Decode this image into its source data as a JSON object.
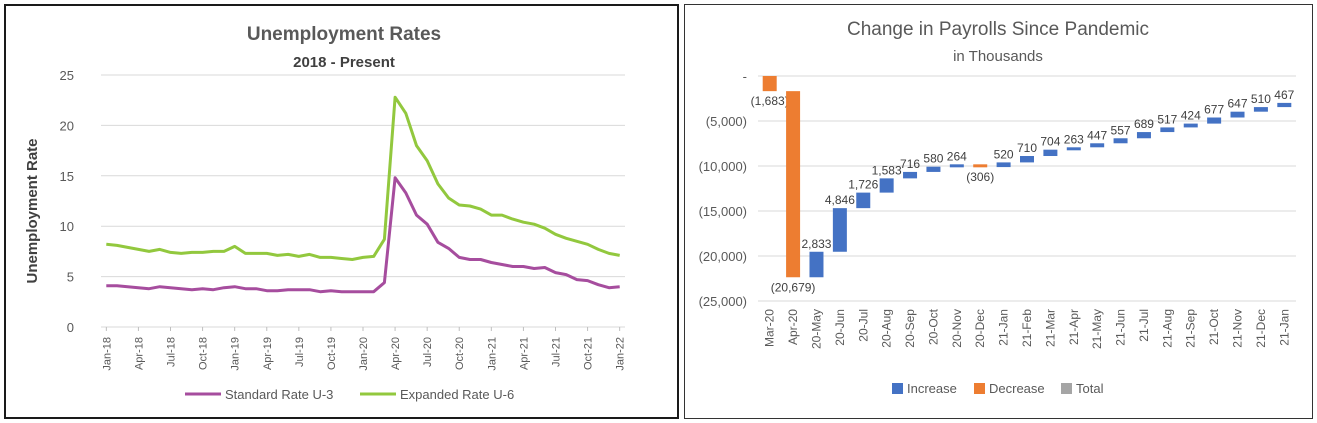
{
  "chart_data": [
    {
      "type": "line",
      "title": "Unemployment Rates",
      "subtitle": "2018 - Present",
      "xlabel": "",
      "ylabel": "Unemployment Rate",
      "ylim": [
        0,
        25
      ],
      "yticks": [
        "0",
        "5",
        "10",
        "15",
        "20",
        "25"
      ],
      "xtick_labels": [
        "Jan-18",
        "Apr-18",
        "Jul-18",
        "Oct-18",
        "Jan-19",
        "Apr-19",
        "Jul-19",
        "Oct-19",
        "Jan-20",
        "Apr-20",
        "Jul-20",
        "Oct-20",
        "Jan-21",
        "Apr-21",
        "Jul-21",
        "Oct-21",
        "Jan-22"
      ],
      "grid": true,
      "legend": "bottom",
      "series": [
        {
          "name": "Standard Rate U-3",
          "color": "#a64d9e",
          "values": [
            4.1,
            4.1,
            4.0,
            3.9,
            3.8,
            4.0,
            3.9,
            3.8,
            3.7,
            3.8,
            3.7,
            3.9,
            4.0,
            3.8,
            3.8,
            3.6,
            3.6,
            3.7,
            3.7,
            3.7,
            3.5,
            3.6,
            3.5,
            3.5,
            3.5,
            3.5,
            4.4,
            14.8,
            13.3,
            11.1,
            10.2,
            8.4,
            7.8,
            6.9,
            6.7,
            6.7,
            6.4,
            6.2,
            6.0,
            6.0,
            5.8,
            5.9,
            5.4,
            5.2,
            4.7,
            4.6,
            4.2,
            3.9,
            4.0
          ]
        },
        {
          "name": "Expanded Rate U-6",
          "color": "#92c83e",
          "values": [
            8.2,
            8.1,
            7.9,
            7.7,
            7.5,
            7.7,
            7.4,
            7.3,
            7.4,
            7.4,
            7.5,
            7.5,
            8.0,
            7.3,
            7.3,
            7.3,
            7.1,
            7.2,
            7.0,
            7.2,
            6.9,
            6.9,
            6.8,
            6.7,
            6.9,
            7.0,
            8.7,
            22.8,
            21.2,
            18.0,
            16.5,
            14.2,
            12.8,
            12.1,
            12.0,
            11.7,
            11.1,
            11.1,
            10.7,
            10.4,
            10.2,
            9.8,
            9.2,
            8.8,
            8.5,
            8.2,
            7.7,
            7.3,
            7.1
          ]
        }
      ]
    },
    {
      "type": "waterfall",
      "title": "Change in Payrolls Since Pandemic",
      "subtitle": "in Thousands",
      "xlabel": "",
      "ylabel": "",
      "ylim": [
        -25000,
        0
      ],
      "yticks": [
        "-",
        "(5,000)",
        "(10,000)",
        "(15,000)",
        "(20,000)",
        "(25,000)"
      ],
      "grid": true,
      "legend": "bottom",
      "legend_entries": [
        {
          "name": "Increase",
          "color": "#4472c4"
        },
        {
          "name": "Decrease",
          "color": "#ed7d31"
        },
        {
          "name": "Total",
          "color": "#a5a5a5"
        }
      ],
      "categories": [
        "Mar-20",
        "Apr-20",
        "20-May",
        "20-Jun",
        "20-Jul",
        "20-Aug",
        "20-Sep",
        "20-Oct",
        "20-Nov",
        "20-Dec",
        "21-Jan",
        "21-Feb",
        "21-Mar",
        "21-Apr",
        "21-May",
        "21-Jun",
        "21-Jul",
        "21-Aug",
        "21-Sep",
        "21-Oct",
        "21-Nov",
        "21-Dec",
        "21-Jan"
      ],
      "values": [
        -1683,
        -20679,
        2833,
        4846,
        1726,
        1583,
        716,
        580,
        264,
        -306,
        520,
        710,
        704,
        263,
        447,
        557,
        689,
        517,
        424,
        677,
        647,
        510,
        467
      ],
      "labels": [
        "(1,683)",
        "(20,679)",
        "2,833",
        "4,846",
        "1,726",
        "1,583",
        "716",
        "580",
        "264",
        "(306)",
        "520",
        "710",
        "704",
        "263",
        "447",
        "557",
        "689",
        "517",
        "424",
        "677",
        "647",
        "510",
        "467"
      ]
    }
  ]
}
